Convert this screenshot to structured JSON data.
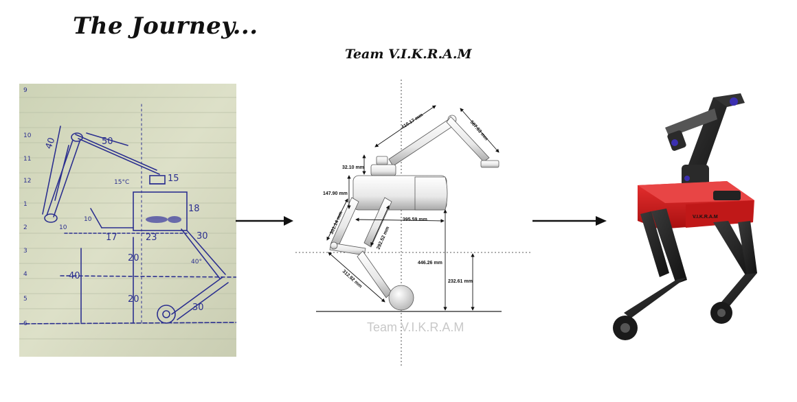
{
  "title": "The Journey...",
  "subtitle": "Team V.I.K.R.A.M",
  "cad": {
    "watermark": "Team V.I.K.R.A.M",
    "dims": {
      "d1": "410.17 mm",
      "d2": "507.63 mm",
      "d3": "32.10 mm",
      "d4": "147.90 mm",
      "d5": "301.14 mm",
      "d6": "395.59 mm",
      "d7": "292.52 mm",
      "d8": "446.26 mm",
      "d9": "232.61 mm",
      "d10": "312.92 mm"
    }
  },
  "sketch": {
    "labels": {
      "l50": "50",
      "l40a": "40",
      "l15": "15",
      "l18": "18",
      "l15deg": "15°C",
      "l10": "10",
      "l17": "17",
      "l23": "23",
      "l30a": "30",
      "l40deg": "40°",
      "l40b": "40",
      "l20a": "20",
      "l20b": "20",
      "l30b": "30",
      "l10b": "10"
    },
    "margin_numbers": [
      "9",
      "10",
      "11",
      "12",
      "1",
      "2",
      "3",
      "4",
      "5",
      "6"
    ]
  },
  "render": {
    "brand": "V.I.K.R.A.M"
  },
  "colors": {
    "paper": "#d9ddc4",
    "ink": "#2b2f8f",
    "robot_red": "#d41a1a",
    "robot_black": "#1c1c1c"
  }
}
